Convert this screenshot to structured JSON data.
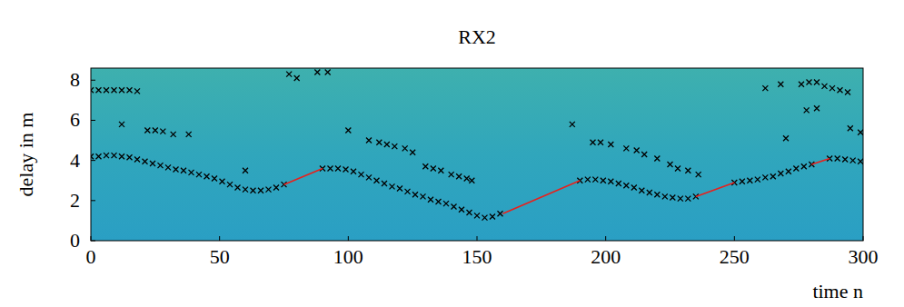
{
  "chart_data": {
    "type": "scatter",
    "title": "RX2",
    "x_label": "time n",
    "y_label": "delay in m",
    "xlim": [
      0,
      300
    ],
    "xticks": [
      0,
      50,
      100,
      150,
      200,
      250,
      300
    ],
    "ylim": [
      0,
      8.6
    ],
    "yticks": [
      0,
      2,
      4,
      6,
      8
    ],
    "series": [
      {
        "type": "scatter",
        "marker": "x",
        "color": "#000000",
        "x": [
          0,
          3,
          6,
          9,
          12,
          15,
          18,
          21,
          24,
          27,
          30,
          33,
          36,
          39,
          42,
          45,
          48,
          51,
          54,
          57,
          60,
          63,
          66,
          69,
          72,
          75,
          90,
          93,
          96,
          99,
          102,
          105,
          108,
          111,
          114,
          117,
          120,
          123,
          126,
          129,
          132,
          135,
          138,
          141,
          144,
          147,
          150,
          153,
          156,
          159,
          190,
          193,
          196,
          199,
          202,
          205,
          208,
          211,
          214,
          217,
          220,
          223,
          226,
          229,
          232,
          235,
          250,
          253,
          256,
          259,
          262,
          265,
          268,
          271,
          274,
          277,
          280,
          287,
          290,
          293,
          296,
          299
        ],
        "values": [
          4.2,
          4.2,
          4.25,
          4.25,
          4.2,
          4.15,
          4.05,
          3.95,
          3.85,
          3.75,
          3.65,
          3.55,
          3.5,
          3.4,
          3.3,
          3.2,
          3.1,
          2.95,
          2.8,
          2.65,
          2.55,
          2.5,
          2.5,
          2.55,
          2.65,
          2.8,
          3.6,
          3.6,
          3.6,
          3.55,
          3.45,
          3.3,
          3.15,
          3.0,
          2.85,
          2.7,
          2.6,
          2.45,
          2.3,
          2.2,
          2.05,
          1.95,
          1.85,
          1.7,
          1.55,
          1.4,
          1.25,
          1.15,
          1.2,
          1.35,
          3.0,
          3.05,
          3.05,
          3.0,
          2.95,
          2.85,
          2.75,
          2.65,
          2.5,
          2.4,
          2.3,
          2.2,
          2.15,
          2.1,
          2.1,
          2.2,
          2.9,
          2.95,
          3.0,
          3.05,
          3.15,
          3.2,
          3.35,
          3.45,
          3.6,
          3.7,
          3.8,
          4.1,
          4.1,
          4.05,
          4.0,
          3.95
        ]
      },
      {
        "type": "scatter",
        "marker": "x",
        "color": "#000000",
        "x": [
          0,
          3,
          6,
          9,
          12,
          15,
          18,
          12,
          22,
          25,
          28,
          32,
          38,
          60,
          77,
          80,
          88,
          92,
          100,
          108,
          112,
          115,
          118,
          122,
          125,
          130,
          133,
          136,
          140,
          143,
          146,
          148,
          187,
          195,
          198,
          202,
          208,
          212,
          215,
          220,
          225,
          228,
          232,
          236,
          262,
          268,
          270,
          276,
          279,
          282,
          285,
          288,
          291,
          294,
          278,
          282,
          295,
          299
        ],
        "values": [
          7.5,
          7.5,
          7.5,
          7.5,
          7.5,
          7.5,
          7.45,
          5.8,
          5.5,
          5.5,
          5.45,
          5.3,
          5.3,
          3.5,
          8.3,
          8.1,
          8.4,
          8.4,
          5.5,
          5.0,
          4.9,
          4.8,
          4.7,
          4.6,
          4.4,
          3.7,
          3.6,
          3.5,
          3.3,
          3.2,
          3.1,
          3.0,
          5.8,
          4.9,
          4.9,
          4.8,
          4.6,
          4.5,
          4.3,
          4.1,
          3.8,
          3.6,
          3.5,
          3.3,
          7.6,
          7.8,
          5.1,
          7.8,
          7.9,
          7.9,
          7.7,
          7.6,
          7.5,
          7.4,
          6.5,
          6.6,
          5.6,
          5.4
        ]
      },
      {
        "type": "line",
        "line_style": "solid",
        "color": "#e8201c",
        "x": [
          75,
          90,
          120,
          160,
          190,
          210,
          235,
          250,
          265,
          280,
          287
        ],
        "values": [
          2.8,
          3.6,
          null,
          1.35,
          3.0,
          null,
          2.2,
          2.9,
          null,
          3.8,
          4.1
        ]
      }
    ]
  }
}
